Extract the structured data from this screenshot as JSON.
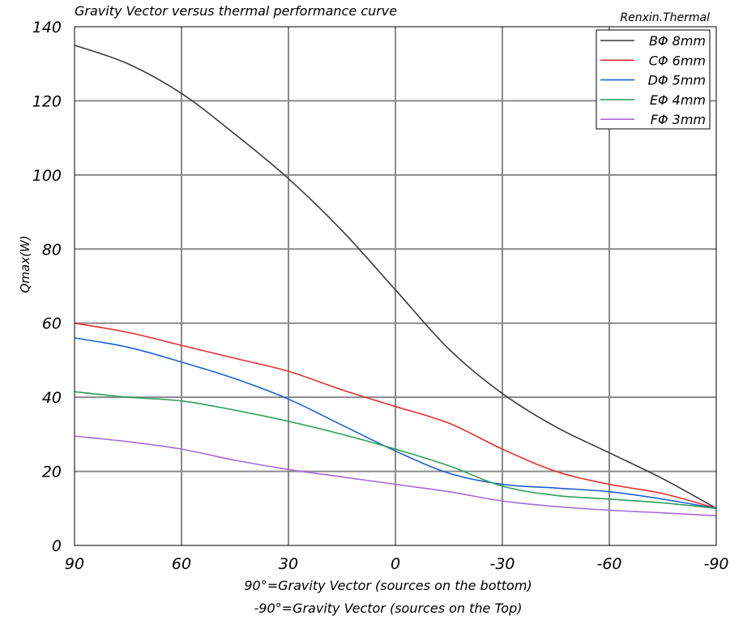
{
  "chart_data": {
    "type": "line",
    "title": "Gravity Vector  versus thermal performance curve",
    "watermark": "Renxin.Thermal",
    "ylabel": "Qmax(W)",
    "xlabel_line1": "90°=Gravity Vector (sources on the bottom)",
    "xlabel_line2": "-90°=Gravity Vector (sources on the Top)",
    "x_ticks": [
      90,
      60,
      30,
      0,
      -30,
      -60,
      -90
    ],
    "y_ticks": [
      0,
      20,
      40,
      60,
      80,
      100,
      120,
      140
    ],
    "xlim": [
      90,
      -90
    ],
    "ylim": [
      0,
      140
    ],
    "grid": true,
    "legend_position": "top-right",
    "series": [
      {
        "name": "BΦ 8mm",
        "color": "#3a3a3a",
        "points": [
          [
            90,
            135
          ],
          [
            75,
            130
          ],
          [
            60,
            122
          ],
          [
            45,
            111
          ],
          [
            30,
            99
          ],
          [
            15,
            85
          ],
          [
            0,
            69
          ],
          [
            -15,
            53
          ],
          [
            -30,
            41
          ],
          [
            -45,
            32
          ],
          [
            -60,
            25
          ],
          [
            -75,
            18
          ],
          [
            -90,
            10
          ]
        ]
      },
      {
        "name": "CΦ 6mm",
        "color": "#e03030",
        "points": [
          [
            90,
            60
          ],
          [
            75,
            57.5
          ],
          [
            60,
            54
          ],
          [
            45,
            50.5
          ],
          [
            30,
            47
          ],
          [
            15,
            42
          ],
          [
            0,
            37.5
          ],
          [
            -15,
            33
          ],
          [
            -30,
            26
          ],
          [
            -45,
            20
          ],
          [
            -60,
            16.5
          ],
          [
            -75,
            14
          ],
          [
            -90,
            10
          ]
        ]
      },
      {
        "name": "DΦ 5mm",
        "color": "#1a5fd0",
        "points": [
          [
            90,
            56
          ],
          [
            75,
            53.5
          ],
          [
            60,
            49.5
          ],
          [
            45,
            45
          ],
          [
            30,
            39.5
          ],
          [
            15,
            32.5
          ],
          [
            0,
            25.5
          ],
          [
            -15,
            19.5
          ],
          [
            -30,
            16.5
          ],
          [
            -45,
            15.5
          ],
          [
            -60,
            14.5
          ],
          [
            -75,
            12.5
          ],
          [
            -90,
            10
          ]
        ]
      },
      {
        "name": "EΦ 4mm",
        "color": "#2e9e5a",
        "points": [
          [
            90,
            41.5
          ],
          [
            75,
            40
          ],
          [
            60,
            39
          ],
          [
            45,
            36.5
          ],
          [
            30,
            33.5
          ],
          [
            15,
            30
          ],
          [
            0,
            26
          ],
          [
            -15,
            21.5
          ],
          [
            -30,
            16
          ],
          [
            -45,
            13.5
          ],
          [
            -60,
            12.5
          ],
          [
            -75,
            11.5
          ],
          [
            -90,
            10
          ]
        ]
      },
      {
        "name": "FΦ 3mm",
        "color": "#a66ad6",
        "points": [
          [
            90,
            29.5
          ],
          [
            75,
            28
          ],
          [
            60,
            26
          ],
          [
            45,
            23
          ],
          [
            30,
            20.5
          ],
          [
            15,
            18.5
          ],
          [
            0,
            16.5
          ],
          [
            -15,
            14.5
          ],
          [
            -30,
            12
          ],
          [
            -45,
            10.5
          ],
          [
            -60,
            9.5
          ],
          [
            -75,
            8.8
          ],
          [
            -90,
            8
          ]
        ]
      }
    ]
  }
}
